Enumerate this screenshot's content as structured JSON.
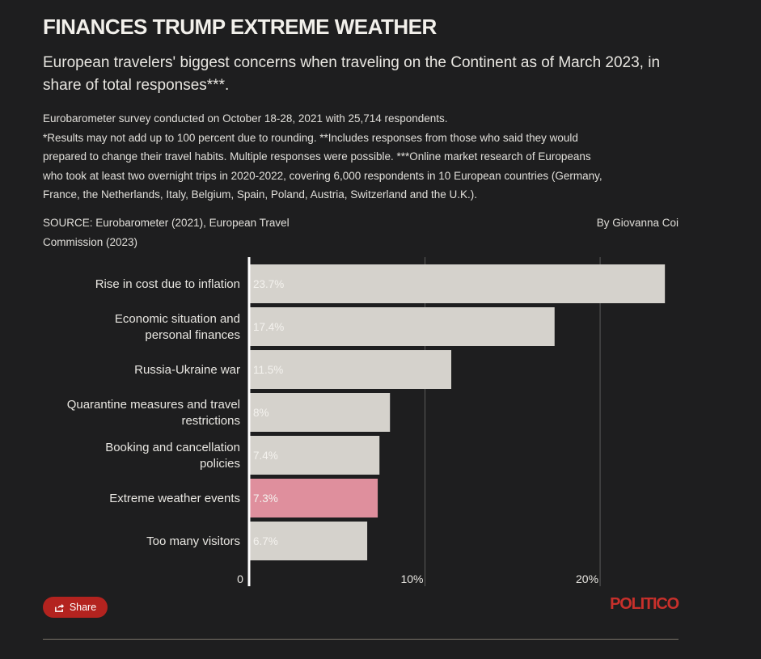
{
  "header": {
    "title": "FINANCES TRUMP EXTREME WEATHER",
    "subtitle": "European travelers' biggest concerns when traveling on the Continent as of March 2023, in share of total responses***."
  },
  "notes": {
    "line1": "Eurobarometer survey conducted on October 18-28, 2021 with 25,714 respondents.",
    "line2": "*Results may not add up to 100 percent due to rounding. **Includes responses from those who said they would",
    "line3": "prepared to change their travel habits. Multiple responses were possible. ***Online market research of Europeans",
    "line4": "who took at least two overnight trips in 2020-2022, covering 6,000 respondents in 10 European countries (Germany,",
    "line5": "France, the Netherlands, Italy, Belgium, Spain, Poland, Austria, Switzerland and the U.K.)."
  },
  "footer_meta": {
    "source": "SOURCE: Eurobarometer (2021), European Travel Commission (2023)",
    "byline": "By Giovanna Coi"
  },
  "share": {
    "label": "Share",
    "icon": "share-icon"
  },
  "logo": "POLITICO",
  "colors": {
    "background": "#1e1e1f",
    "bar": "#d5d2cc",
    "highlight": "#df8f9d",
    "grid": "#5a5a5a",
    "axis": "#ffffff",
    "accent": "#b3231f"
  },
  "chart_data": {
    "type": "bar",
    "orientation": "horizontal",
    "categories": [
      "Rise in cost due to inflation",
      "Economic situation and personal finances",
      "Russia-Ukraine war",
      "Quarantine measures and travel restrictions",
      "Booking and cancellation policies",
      "Extreme weather events",
      "Too many visitors"
    ],
    "values": [
      23.7,
      17.4,
      11.5,
      8,
      7.4,
      7.3,
      6.7
    ],
    "value_labels": [
      "23.7%",
      "17.4%",
      "11.5%",
      "8%",
      "7.4%",
      "7.3%",
      "6.7%"
    ],
    "highlight": "Extreme weather events",
    "xlim": [
      0,
      24.2
    ],
    "ticks": [
      0,
      10,
      20
    ],
    "tick_labels": [
      "0",
      "10%",
      "20%"
    ],
    "grid": true
  }
}
